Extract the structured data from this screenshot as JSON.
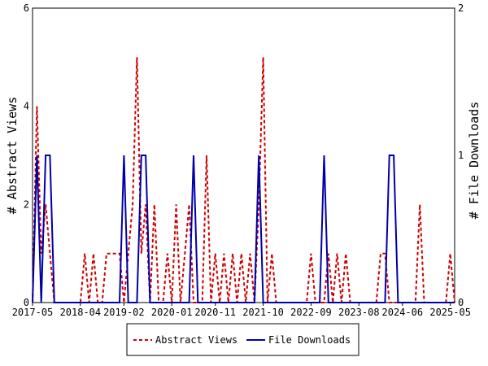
{
  "chart_data": {
    "type": "line",
    "title": "",
    "xlabel": "",
    "ylabel": "# Abstract Views",
    "y2label": "# File Downloads",
    "ylim": [
      0,
      6
    ],
    "y2lim": [
      0,
      2
    ],
    "yticks": [
      "0",
      "2",
      "4",
      "6"
    ],
    "y2ticks": [
      "0",
      "1",
      "2"
    ],
    "xrange": [
      "2017-05",
      "2025-06"
    ],
    "xtick_labels": [
      "2017-05",
      "2018-04",
      "2019-02",
      "2020-01",
      "2020-11",
      "2021-10",
      "2022-09",
      "2023-08",
      "2024-06",
      "2025-05"
    ],
    "legend_position": "bottom-center",
    "grid": false,
    "series": [
      {
        "name": "Abstract Views",
        "axis": "left",
        "color": "#cc0000",
        "style": "dashed",
        "points": [
          [
            "2017-05",
            0
          ],
          [
            "2017-06",
            4
          ],
          [
            "2017-07",
            1
          ],
          [
            "2017-08",
            2
          ],
          [
            "2017-09",
            1
          ],
          [
            "2017-10",
            0
          ],
          [
            "2017-11",
            0
          ],
          [
            "2017-12",
            0
          ],
          [
            "2018-01",
            0
          ],
          [
            "2018-02",
            0
          ],
          [
            "2018-03",
            0
          ],
          [
            "2018-04",
            0
          ],
          [
            "2018-05",
            1
          ],
          [
            "2018-06",
            0
          ],
          [
            "2018-07",
            1
          ],
          [
            "2018-08",
            0
          ],
          [
            "2018-09",
            0
          ],
          [
            "2018-10",
            1
          ],
          [
            "2018-11",
            1
          ],
          [
            "2018-12",
            1
          ],
          [
            "2019-01",
            1
          ],
          [
            "2019-02",
            0
          ],
          [
            "2019-03",
            1
          ],
          [
            "2019-04",
            2
          ],
          [
            "2019-05",
            5
          ],
          [
            "2019-06",
            1
          ],
          [
            "2019-07",
            2
          ],
          [
            "2019-08",
            0
          ],
          [
            "2019-09",
            2
          ],
          [
            "2019-10",
            0
          ],
          [
            "2019-11",
            0
          ],
          [
            "2019-12",
            1
          ],
          [
            "2020-01",
            0
          ],
          [
            "2020-02",
            2
          ],
          [
            "2020-03",
            0
          ],
          [
            "2020-04",
            1
          ],
          [
            "2020-05",
            2
          ],
          [
            "2020-06",
            0
          ],
          [
            "2020-07",
            0
          ],
          [
            "2020-08",
            0
          ],
          [
            "2020-09",
            3
          ],
          [
            "2020-10",
            0
          ],
          [
            "2020-11",
            1
          ],
          [
            "2020-12",
            0
          ],
          [
            "2021-01",
            1
          ],
          [
            "2021-02",
            0
          ],
          [
            "2021-03",
            1
          ],
          [
            "2021-04",
            0
          ],
          [
            "2021-05",
            1
          ],
          [
            "2021-06",
            0
          ],
          [
            "2021-07",
            1
          ],
          [
            "2021-08",
            0
          ],
          [
            "2021-09",
            2
          ],
          [
            "2021-10",
            5
          ],
          [
            "2021-11",
            0
          ],
          [
            "2021-12",
            1
          ],
          [
            "2022-01",
            0
          ],
          [
            "2022-02",
            0
          ],
          [
            "2022-03",
            0
          ],
          [
            "2022-04",
            0
          ],
          [
            "2022-05",
            0
          ],
          [
            "2022-06",
            0
          ],
          [
            "2022-07",
            0
          ],
          [
            "2022-08",
            0
          ],
          [
            "2022-09",
            1
          ],
          [
            "2022-10",
            0
          ],
          [
            "2022-11",
            0
          ],
          [
            "2022-12",
            0
          ],
          [
            "2023-01",
            1
          ],
          [
            "2023-02",
            0
          ],
          [
            "2023-03",
            1
          ],
          [
            "2023-04",
            0
          ],
          [
            "2023-05",
            1
          ],
          [
            "2023-06",
            0
          ],
          [
            "2023-07",
            0
          ],
          [
            "2023-08",
            0
          ],
          [
            "2023-09",
            0
          ],
          [
            "2023-10",
            0
          ],
          [
            "2023-11",
            0
          ],
          [
            "2023-12",
            0
          ],
          [
            "2024-01",
            1
          ],
          [
            "2024-02",
            1
          ],
          [
            "2024-03",
            0
          ],
          [
            "2024-04",
            0
          ],
          [
            "2024-05",
            0
          ],
          [
            "2024-06",
            0
          ],
          [
            "2024-07",
            0
          ],
          [
            "2024-08",
            0
          ],
          [
            "2024-09",
            0
          ],
          [
            "2024-10",
            2
          ],
          [
            "2024-11",
            0
          ],
          [
            "2024-12",
            0
          ],
          [
            "2025-01",
            0
          ],
          [
            "2025-02",
            0
          ],
          [
            "2025-03",
            0
          ],
          [
            "2025-04",
            0
          ],
          [
            "2025-05",
            1
          ],
          [
            "2025-06",
            0
          ]
        ]
      },
      {
        "name": "File Downloads",
        "axis": "right",
        "color": "#0000aa",
        "style": "solid",
        "points": [
          [
            "2017-05",
            0
          ],
          [
            "2017-06",
            1
          ],
          [
            "2017-07",
            0
          ],
          [
            "2017-08",
            1
          ],
          [
            "2017-09",
            1
          ],
          [
            "2017-10",
            0
          ],
          [
            "2017-11",
            0
          ],
          [
            "2017-12",
            0
          ],
          [
            "2018-01",
            0
          ],
          [
            "2018-02",
            0
          ],
          [
            "2018-03",
            0
          ],
          [
            "2018-04",
            0
          ],
          [
            "2018-05",
            0
          ],
          [
            "2018-06",
            0
          ],
          [
            "2018-07",
            0
          ],
          [
            "2018-08",
            0
          ],
          [
            "2018-09",
            0
          ],
          [
            "2018-10",
            0
          ],
          [
            "2018-11",
            0
          ],
          [
            "2018-12",
            0
          ],
          [
            "2019-01",
            0
          ],
          [
            "2019-02",
            1
          ],
          [
            "2019-03",
            0
          ],
          [
            "2019-04",
            0
          ],
          [
            "2019-05",
            0
          ],
          [
            "2019-06",
            1
          ],
          [
            "2019-07",
            1
          ],
          [
            "2019-08",
            0
          ],
          [
            "2019-09",
            0
          ],
          [
            "2019-10",
            0
          ],
          [
            "2019-11",
            0
          ],
          [
            "2019-12",
            0
          ],
          [
            "2020-01",
            0
          ],
          [
            "2020-02",
            0
          ],
          [
            "2020-03",
            0
          ],
          [
            "2020-04",
            0
          ],
          [
            "2020-05",
            0
          ],
          [
            "2020-06",
            1
          ],
          [
            "2020-07",
            0
          ],
          [
            "2020-08",
            0
          ],
          [
            "2020-09",
            0
          ],
          [
            "2020-10",
            0
          ],
          [
            "2020-11",
            0
          ],
          [
            "2020-12",
            0
          ],
          [
            "2021-01",
            0
          ],
          [
            "2021-02",
            0
          ],
          [
            "2021-03",
            0
          ],
          [
            "2021-04",
            0
          ],
          [
            "2021-05",
            0
          ],
          [
            "2021-06",
            0
          ],
          [
            "2021-07",
            0
          ],
          [
            "2021-08",
            0
          ],
          [
            "2021-09",
            1
          ],
          [
            "2021-10",
            0
          ],
          [
            "2021-11",
            0
          ],
          [
            "2021-12",
            0
          ],
          [
            "2022-01",
            0
          ],
          [
            "2022-02",
            0
          ],
          [
            "2022-03",
            0
          ],
          [
            "2022-04",
            0
          ],
          [
            "2022-05",
            0
          ],
          [
            "2022-06",
            0
          ],
          [
            "2022-07",
            0
          ],
          [
            "2022-08",
            0
          ],
          [
            "2022-09",
            0
          ],
          [
            "2022-10",
            0
          ],
          [
            "2022-11",
            0
          ],
          [
            "2022-12",
            1
          ],
          [
            "2023-01",
            0
          ],
          [
            "2023-02",
            0
          ],
          [
            "2023-03",
            0
          ],
          [
            "2023-04",
            0
          ],
          [
            "2023-05",
            0
          ],
          [
            "2023-06",
            0
          ],
          [
            "2023-07",
            0
          ],
          [
            "2023-08",
            0
          ],
          [
            "2023-09",
            0
          ],
          [
            "2023-10",
            0
          ],
          [
            "2023-11",
            0
          ],
          [
            "2023-12",
            0
          ],
          [
            "2024-01",
            0
          ],
          [
            "2024-02",
            0
          ],
          [
            "2024-03",
            1
          ],
          [
            "2024-04",
            1
          ],
          [
            "2024-05",
            0
          ],
          [
            "2024-06",
            0
          ],
          [
            "2024-07",
            0
          ],
          [
            "2024-08",
            0
          ],
          [
            "2024-09",
            0
          ],
          [
            "2024-10",
            0
          ],
          [
            "2024-11",
            0
          ],
          [
            "2024-12",
            0
          ],
          [
            "2025-01",
            0
          ],
          [
            "2025-02",
            0
          ],
          [
            "2025-03",
            0
          ],
          [
            "2025-04",
            0
          ],
          [
            "2025-05",
            0
          ],
          [
            "2025-06",
            0
          ]
        ]
      }
    ]
  }
}
